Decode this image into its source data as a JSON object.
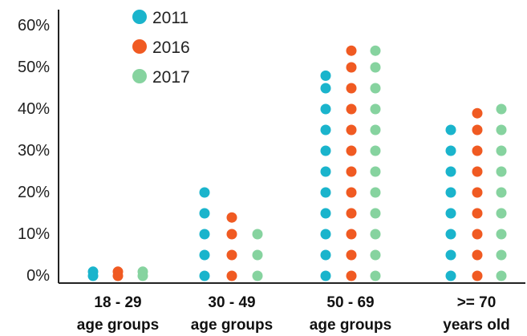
{
  "chart_data": {
    "type": "scatter",
    "categories": [
      [
        "18 - 29",
        "age groups"
      ],
      [
        "30 - 49",
        "age groups"
      ],
      [
        "50 - 69",
        "age groups"
      ],
      [
        ">= 70",
        "years old"
      ]
    ],
    "y_ticks": [
      "0%",
      "10%",
      "20%",
      "30%",
      "40%",
      "50%",
      "60%"
    ],
    "ylim": [
      0,
      60
    ],
    "grid": false,
    "legend_position": "top-left",
    "series": [
      {
        "name": "2011",
        "color": "#1ab4cc",
        "values": [
          1,
          20,
          48,
          36
        ]
      },
      {
        "name": "2016",
        "color": "#f05a22",
        "values": [
          1,
          14,
          54,
          39
        ]
      },
      {
        "name": "2017",
        "color": "#86d39f",
        "values": [
          1,
          12,
          54,
          40
        ]
      }
    ]
  }
}
